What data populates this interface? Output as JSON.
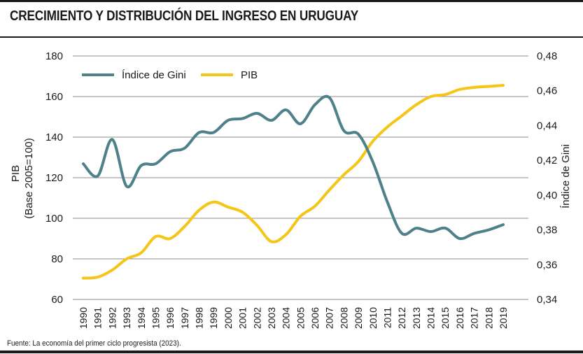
{
  "title": "CRECIMIENTO Y DISTRIBUCIÓN DEL INGRESO EN URUGUAY",
  "source": "Fuente: La economía del primer ciclo progresista (2023).",
  "colors": {
    "gini": "#4e8189",
    "pib": "#f5c518",
    "grid": "#8c8c8c"
  },
  "chart_data": {
    "type": "line",
    "x": [
      "1990",
      "1991",
      "1992",
      "1993",
      "1994",
      "1995",
      "1996",
      "1997",
      "1998",
      "1999",
      "2000",
      "2001",
      "2002",
      "2003",
      "2004",
      "2005",
      "2006",
      "2007",
      "2008",
      "2009",
      "2010",
      "2011",
      "2012",
      "2013",
      "2014",
      "2015",
      "2016",
      "2017",
      "2018",
      "2019"
    ],
    "y_left": {
      "label_line1": "PIB",
      "label_line2": "(Base 2005=100)",
      "range": [
        60,
        180
      ],
      "ticks": [
        "60",
        "80",
        "100",
        "120",
        "140",
        "160",
        "180"
      ]
    },
    "y_right": {
      "label": "Índice de Gini",
      "range": [
        0.34,
        0.48
      ],
      "ticks": [
        "0,34",
        "0,36",
        "0,38",
        "0,40",
        "0,42",
        "0,44",
        "0,46",
        "0,48"
      ]
    },
    "series": [
      {
        "name": "Índice de Gini",
        "axis": "right",
        "values": [
          0.418,
          0.411,
          0.432,
          0.405,
          0.417,
          0.418,
          0.425,
          0.427,
          0.436,
          0.436,
          0.443,
          0.444,
          0.447,
          0.443,
          0.449,
          0.441,
          0.452,
          0.456,
          0.437,
          0.435,
          0.419,
          0.396,
          0.378,
          0.381,
          0.379,
          0.381,
          0.375,
          0.378,
          0.38,
          0.383
        ]
      },
      {
        "name": "PIB",
        "axis": "left",
        "values": [
          70.5,
          71,
          74.5,
          80,
          83,
          91,
          90,
          96,
          104,
          108,
          105.5,
          103,
          96.5,
          88.5,
          92,
          101,
          106,
          114,
          121.5,
          128,
          138,
          145,
          150.5,
          156,
          160,
          161,
          163.5,
          164.5,
          165,
          165.5
        ]
      }
    ]
  }
}
